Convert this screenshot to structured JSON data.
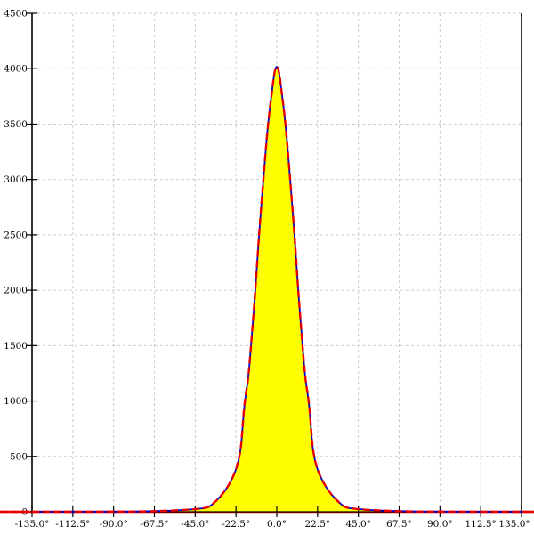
{
  "chart_data": {
    "type": "area",
    "title": "",
    "xlim": [
      -135,
      135
    ],
    "ylim": [
      0,
      4500
    ],
    "grid": "dashed",
    "legend": false,
    "x_ticks": {
      "values": [
        -135,
        -112.5,
        -90,
        -67.5,
        -45,
        -22.5,
        0,
        22.5,
        45,
        67.5,
        90,
        112.5,
        135
      ],
      "labels": [
        "-135.0°",
        "-112.5°",
        "-90.0°",
        "-67.5°",
        "-45.0°",
        "-22.5°",
        "0.0°",
        "22.5°",
        "45.0°",
        "67.5°",
        "90.0°",
        "112.5°",
        "135.0°"
      ]
    },
    "y_ticks": {
      "values": [
        0,
        500,
        1000,
        1500,
        2000,
        2500,
        3000,
        3500,
        4000,
        4500
      ],
      "labels": [
        "0",
        "500",
        "1000",
        "1500",
        "2000",
        "2500",
        "3000",
        "3500",
        "4000",
        "4500"
      ]
    },
    "series": [
      {
        "name": "area-fill",
        "type": "fill",
        "color": "#ffff00"
      },
      {
        "name": "curve-solid-blue",
        "type": "line",
        "style": "solid",
        "color": "#0000cd"
      },
      {
        "name": "curve-dashed-red",
        "type": "line",
        "style": "dashed",
        "color": "#e60000"
      }
    ],
    "peak": {
      "x": 0,
      "y": 4030
    },
    "points": [
      [
        -135,
        0
      ],
      [
        -110,
        0
      ],
      [
        -93,
        1
      ],
      [
        -79,
        2
      ],
      [
        -69,
        5
      ],
      [
        -59,
        10
      ],
      [
        -51,
        16
      ],
      [
        -45,
        24
      ],
      [
        -40,
        33
      ],
      [
        -38,
        40
      ],
      [
        -36,
        60
      ],
      [
        -32,
        120
      ],
      [
        -28,
        200
      ],
      [
        -24.5,
        300
      ],
      [
        -22,
        400
      ],
      [
        -20.6,
        500
      ],
      [
        -19.6,
        600
      ],
      [
        -18.7,
        800
      ],
      [
        -17.7,
        1000
      ],
      [
        -15.7,
        1200
      ],
      [
        -14.2,
        1500
      ],
      [
        -11.8,
        2000
      ],
      [
        -9.8,
        2500
      ],
      [
        -7.4,
        3000
      ],
      [
        -4.9,
        3500
      ],
      [
        -2.4,
        3830
      ],
      [
        -1.2,
        3980
      ],
      [
        0,
        4030
      ],
      [
        1.2,
        3980
      ],
      [
        2.4,
        3830
      ],
      [
        4.9,
        3500
      ],
      [
        7.4,
        3000
      ],
      [
        9.8,
        2500
      ],
      [
        11.8,
        2000
      ],
      [
        14.2,
        1500
      ],
      [
        15.7,
        1200
      ],
      [
        17.7,
        1000
      ],
      [
        18.7,
        800
      ],
      [
        19.6,
        600
      ],
      [
        20.6,
        500
      ],
      [
        22,
        400
      ],
      [
        24.5,
        300
      ],
      [
        28,
        200
      ],
      [
        32,
        120
      ],
      [
        36,
        60
      ],
      [
        38,
        40
      ],
      [
        40,
        33
      ],
      [
        45,
        24
      ],
      [
        51,
        16
      ],
      [
        59,
        10
      ],
      [
        69,
        5
      ],
      [
        79,
        2
      ],
      [
        93,
        1
      ],
      [
        110,
        0
      ],
      [
        135,
        0
      ]
    ]
  },
  "colors": {
    "background": "#ffffff",
    "axis": "#000000",
    "grid": "#cccccc",
    "fill": "#ffff00",
    "curve_blue": "#0000cd",
    "curve_red": "#e60000"
  }
}
